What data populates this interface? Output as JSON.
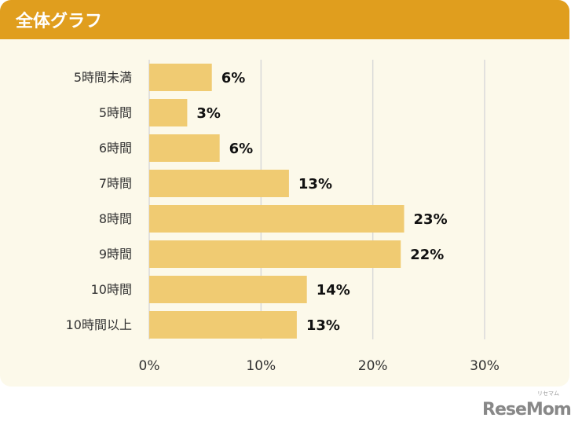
{
  "header": {
    "title": "全体グラフ"
  },
  "logo": {
    "text": "ReseMom",
    "sub": "リセマム"
  },
  "chart_data": {
    "type": "bar",
    "orientation": "horizontal",
    "categories": [
      "5時間未満",
      "5時間",
      "6時間",
      "7時間",
      "8時間",
      "9時間",
      "10時間",
      "10時間以上"
    ],
    "values": [
      5.6,
      3.4,
      6.3,
      12.5,
      22.8,
      22.5,
      14.1,
      13.2
    ],
    "data_labels": [
      "6%",
      "3%",
      "6%",
      "13%",
      "23%",
      "22%",
      "14%",
      "13%"
    ],
    "xlim": [
      0,
      30
    ],
    "x_ticks": [
      "0%",
      "10%",
      "20%",
      "30%"
    ],
    "x_tick_values": [
      0,
      10,
      20,
      30
    ],
    "grid": true,
    "colors": {
      "bar": "#F0CB72",
      "grid": "#D9D9D9",
      "header": "#E09E1E",
      "panel": "#FCF9EA"
    }
  }
}
